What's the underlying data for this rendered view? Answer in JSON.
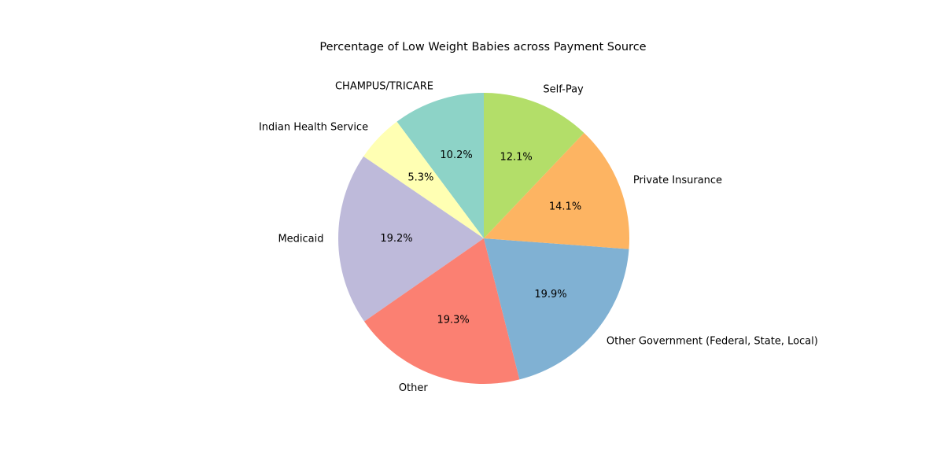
{
  "chart_data": {
    "type": "pie",
    "title": "Percentage of Low Weight Babies across Payment Source",
    "start_angle_deg": 90,
    "direction": "counterclockwise",
    "legend": "none",
    "slices": [
      {
        "label": "CHAMPUS/TRICARE",
        "value": 10.2,
        "pct_label": "10.2%",
        "color": "#8dd3c7"
      },
      {
        "label": "Indian Health Service",
        "value": 5.3,
        "pct_label": "5.3%",
        "color": "#ffffb3"
      },
      {
        "label": "Medicaid",
        "value": 19.2,
        "pct_label": "19.2%",
        "color": "#bebada"
      },
      {
        "label": "Other",
        "value": 19.3,
        "pct_label": "19.3%",
        "color": "#fb8072"
      },
      {
        "label": "Other Government (Federal, State, Local)",
        "value": 19.9,
        "pct_label": "19.9%",
        "color": "#80b1d3"
      },
      {
        "label": "Private Insurance",
        "value": 14.1,
        "pct_label": "14.1%",
        "color": "#fdb462"
      },
      {
        "label": "Self-Pay",
        "value": 12.1,
        "pct_label": "12.1%",
        "color": "#b3de69"
      }
    ]
  }
}
